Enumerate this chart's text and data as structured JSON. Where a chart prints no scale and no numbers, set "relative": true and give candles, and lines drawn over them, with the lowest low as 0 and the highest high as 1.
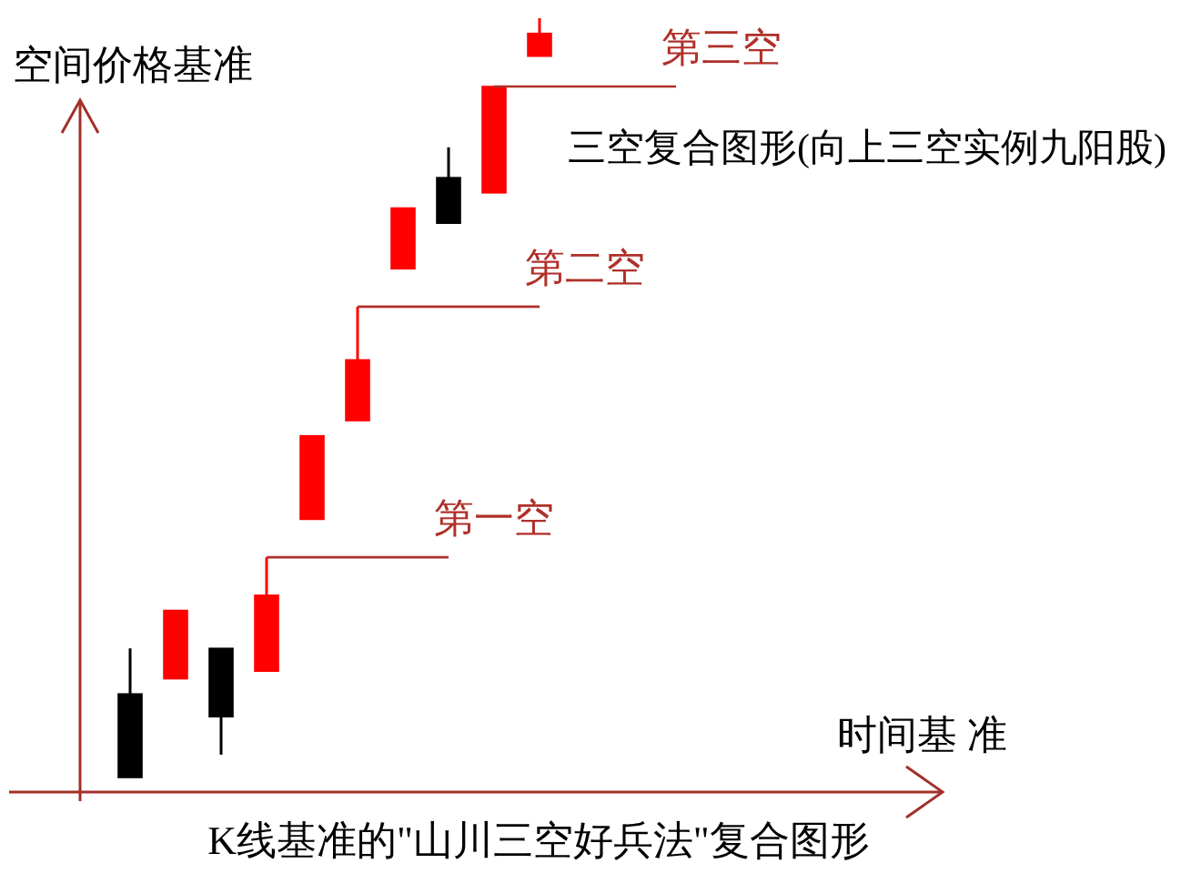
{
  "chart_data": {
    "type": "candlestick",
    "title": "三空复合图形(向上三空实例九阳股)",
    "ylabel": "空间价格基准",
    "annotations": [
      "时间基 准",
      "K线基准的\"山川三空好兵法\"复合图形"
    ],
    "relative": true,
    "categories": [
      null,
      null,
      null,
      null,
      null,
      null,
      null,
      null,
      null,
      null
    ],
    "ohlc": [
      [
        0.11,
        0.17,
        0,
        0
      ],
      [
        0.13,
        0.22,
        0.13,
        0.22
      ],
      [
        0.17,
        0.17,
        0.03,
        0.08
      ],
      [
        0.14,
        0.29,
        0.14,
        0.24
      ],
      [
        0.34,
        0.45,
        0.34,
        0.45
      ],
      [
        0.47,
        0.62,
        0.47,
        0.55
      ],
      [
        0.67,
        0.75,
        0.67,
        0.75
      ],
      [
        0.79,
        0.83,
        0.73,
        0.73
      ],
      [
        0.77,
        0.91,
        0.77,
        0.91
      ],
      [
        0.95,
        1,
        0.95,
        0.98
      ]
    ],
    "colors": [
      "#000000",
      "#ff0000",
      "#000000",
      "#ff0000",
      "#ff0000",
      "#ff0000",
      "#ff0000",
      "#000000",
      "#ff0000",
      "#ff0000"
    ],
    "ref_lines": [
      {
        "axis": "y",
        "value": 0.29,
        "label": "第一空",
        "color": "#b0302a"
      },
      {
        "axis": "y",
        "value": 0.62,
        "label": "第二空",
        "color": "#b0302a"
      },
      {
        "axis": "y",
        "value": 0.91,
        "label": "第三空",
        "color": "#b0302a"
      }
    ]
  }
}
